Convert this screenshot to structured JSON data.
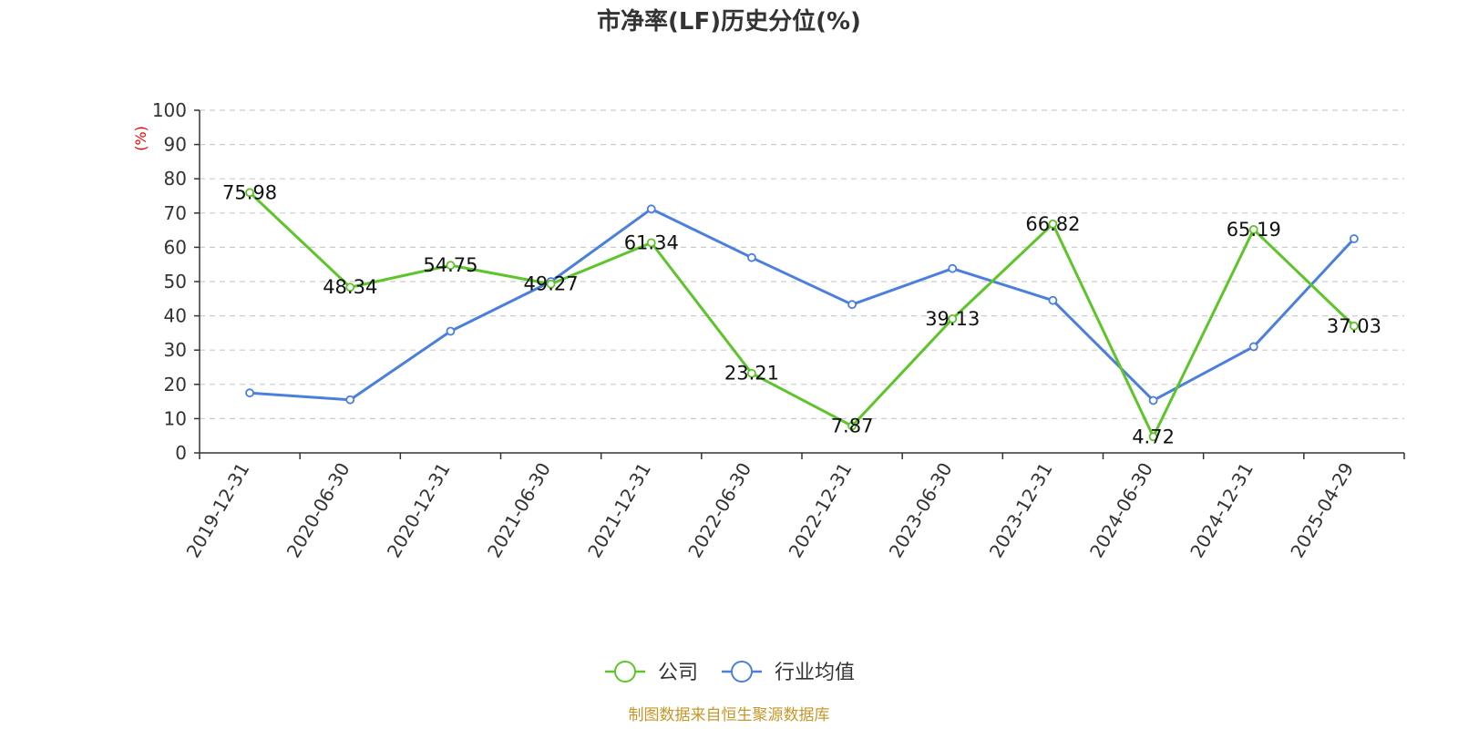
{
  "chart_data": {
    "type": "line",
    "title": "市净率(LF)历史分位(%)",
    "ylabel": "(%)",
    "ylim": [
      0,
      100
    ],
    "yticks": [
      0,
      10,
      20,
      30,
      40,
      50,
      60,
      70,
      80,
      90,
      100
    ],
    "grid": true,
    "legend_position": "bottom-center",
    "categories": [
      "2019-12-31",
      "2020-06-30",
      "2020-12-31",
      "2021-06-30",
      "2021-12-31",
      "2022-06-30",
      "2022-12-31",
      "2023-06-30",
      "2023-12-31",
      "2024-06-30",
      "2024-12-31",
      "2025-04-29"
    ],
    "series": [
      {
        "name": "公司",
        "color": "#5dc42a",
        "values": [
          75.98,
          48.34,
          54.75,
          49.27,
          61.34,
          23.21,
          7.87,
          39.13,
          66.82,
          4.72,
          65.19,
          37.03
        ],
        "labels": [
          "75.98",
          "48.34",
          "54.75",
          "49.27",
          "61.34",
          "23.21",
          "7.87",
          "39.13",
          "66.82",
          "4.72",
          "65.19",
          "37.03"
        ]
      },
      {
        "name": "行业均值",
        "color": "#4a7fde",
        "values": [
          17.5,
          15.5,
          35.5,
          50.0,
          71.2,
          57.0,
          43.3,
          53.8,
          44.5,
          15.3,
          31.0,
          62.5
        ]
      }
    ]
  },
  "source_note": "制图数据来自恒生聚源数据库"
}
